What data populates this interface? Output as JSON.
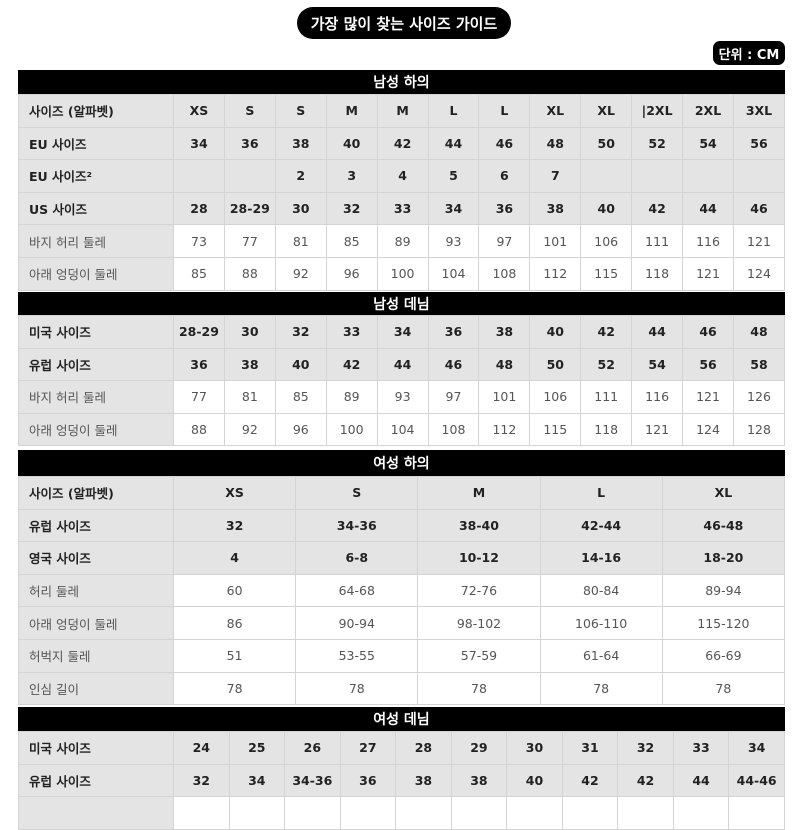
{
  "title": "가장 많이 찾는 사이즈 가이드",
  "unit": "단위 : CM",
  "sections": [
    {
      "title": "남성 하의",
      "rows": [
        {
          "style": "bold",
          "label": "사이즈 (알파벳)",
          "values": [
            "XS",
            "S",
            "S",
            "M",
            "M",
            "L",
            "L",
            "XL",
            "XL",
            "|2XL",
            "2XL",
            "3XL"
          ]
        },
        {
          "style": "bold",
          "label": "EU 사이즈",
          "values": [
            "34",
            "36",
            "38",
            "40",
            "42",
            "44",
            "46",
            "48",
            "50",
            "52",
            "54",
            "56"
          ]
        },
        {
          "style": "bold",
          "label": "EU 사이즈²",
          "values": [
            "",
            "",
            "2",
            "3",
            "4",
            "5",
            "6",
            "7",
            "",
            "",
            "",
            ""
          ]
        },
        {
          "style": "bold",
          "label": "US 사이즈",
          "values": [
            "28",
            "28-29",
            "30",
            "32",
            "33",
            "34",
            "36",
            "38",
            "40",
            "42",
            "44",
            "46"
          ]
        },
        {
          "style": "measure",
          "label": "바지 허리 둘레",
          "values": [
            "73",
            "77",
            "81",
            "85",
            "89",
            "93",
            "97",
            "101",
            "106",
            "111",
            "116",
            "121"
          ]
        },
        {
          "style": "measure",
          "label": "아래 엉덩이 둘레",
          "values": [
            "85",
            "88",
            "92",
            "96",
            "100",
            "104",
            "108",
            "112",
            "115",
            "118",
            "121",
            "124"
          ]
        }
      ]
    },
    {
      "title": "남성 데님",
      "rows": [
        {
          "style": "bold",
          "label": "미국 사이즈",
          "values": [
            "28-29",
            "30",
            "32",
            "33",
            "34",
            "36",
            "38",
            "40",
            "42",
            "44",
            "46",
            "48"
          ]
        },
        {
          "style": "bold",
          "label": "유럽 사이즈",
          "values": [
            "36",
            "38",
            "40",
            "42",
            "44",
            "46",
            "48",
            "50",
            "52",
            "54",
            "56",
            "58"
          ]
        },
        {
          "style": "measure",
          "label": "바지 허리 둘레",
          "values": [
            "77",
            "81",
            "85",
            "89",
            "93",
            "97",
            "101",
            "106",
            "111",
            "116",
            "121",
            "126"
          ]
        },
        {
          "style": "measure",
          "label": "아래 엉덩이 둘레",
          "values": [
            "88",
            "92",
            "96",
            "100",
            "104",
            "108",
            "112",
            "115",
            "118",
            "121",
            "124",
            "128"
          ]
        }
      ]
    },
    {
      "title": "여성 하의",
      "rows": [
        {
          "style": "bold",
          "label": "사이즈 (알파벳)",
          "values": [
            "XS",
            "S",
            "M",
            "L",
            "XL"
          ]
        },
        {
          "style": "bold",
          "label": "유럽 사이즈",
          "values": [
            "32",
            "34-36",
            "38-40",
            "42-44",
            "46-48"
          ]
        },
        {
          "style": "bold",
          "label": "영국 사이즈",
          "values": [
            "4",
            "6-8",
            "10-12",
            "14-16",
            "18-20"
          ]
        },
        {
          "style": "measure",
          "label": "허리 둘레",
          "values": [
            "60",
            "64-68",
            "72-76",
            "80-84",
            "89-94"
          ]
        },
        {
          "style": "measure",
          "label": "아래 엉덩이 둘레",
          "values": [
            "86",
            "90-94",
            "98-102",
            "106-110",
            "115-120"
          ]
        },
        {
          "style": "measure",
          "label": "허벅지 둘레",
          "values": [
            "51",
            "53-55",
            "57-59",
            "61-64",
            "66-69"
          ]
        },
        {
          "style": "measure",
          "label": "인심 길이",
          "values": [
            "78",
            "78",
            "78",
            "78",
            "78"
          ]
        }
      ]
    },
    {
      "title": "여성 데님",
      "rows": [
        {
          "style": "bold",
          "label": "미국 사이즈",
          "values": [
            "24",
            "25",
            "26",
            "27",
            "28",
            "29",
            "30",
            "31",
            "32",
            "33",
            "34"
          ]
        },
        {
          "style": "bold",
          "label": "유럽 사이즈",
          "values": [
            "32",
            "34",
            "34-36",
            "36",
            "38",
            "38",
            "40",
            "42",
            "42",
            "44",
            "44-46"
          ]
        },
        {
          "style": "measure",
          "label": "",
          "values": [
            "",
            "",
            "",
            "",
            "",
            "",
            "",
            "",
            "",
            "",
            ""
          ]
        }
      ]
    }
  ]
}
